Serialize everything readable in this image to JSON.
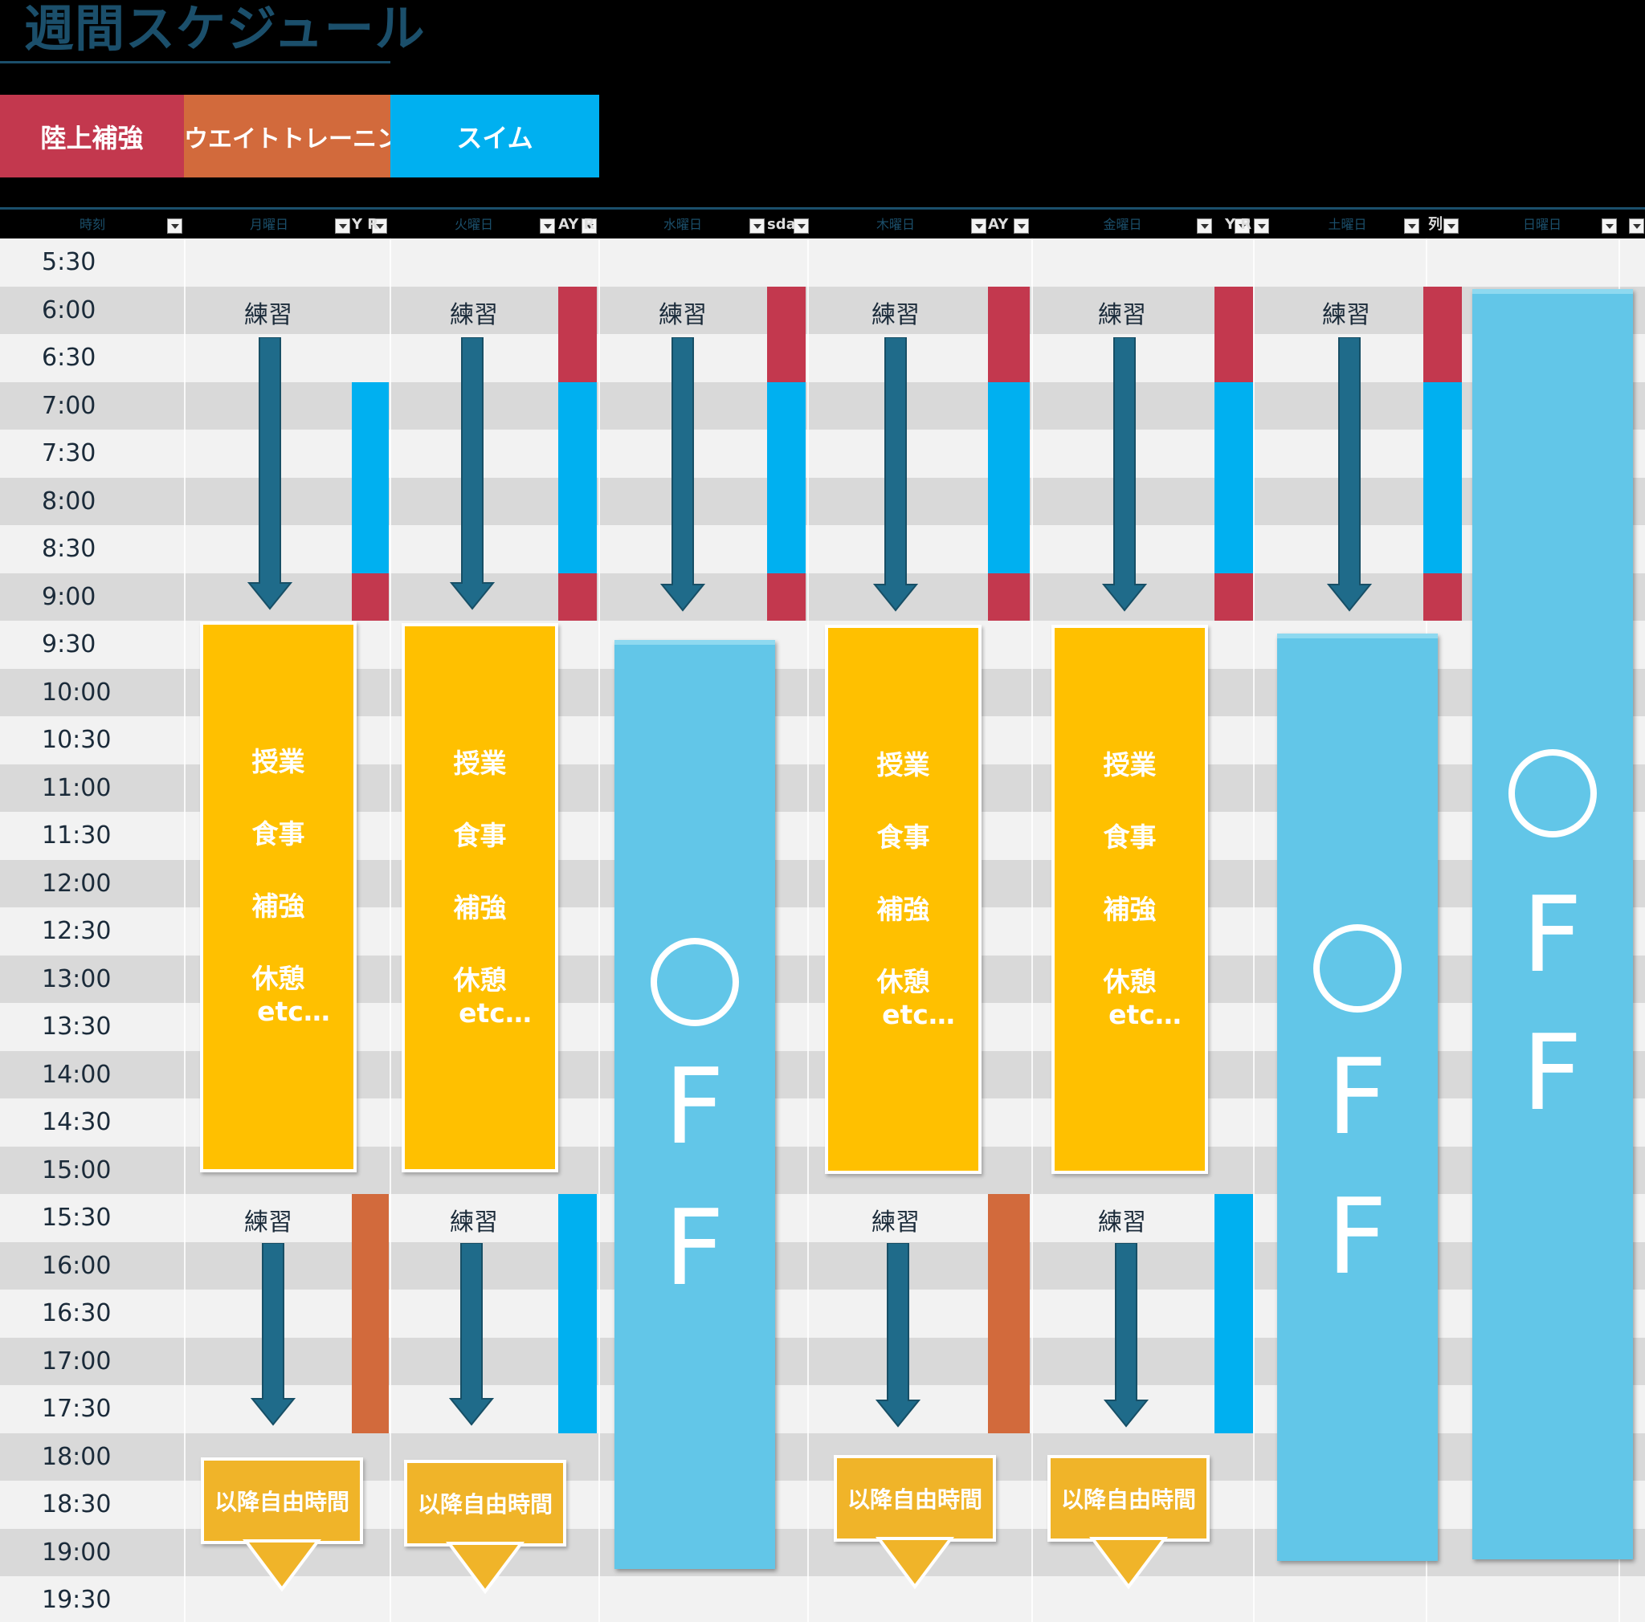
{
  "title": "週間スケジュール",
  "legend": [
    {
      "label": "陸上補強",
      "color": "#c3384e"
    },
    {
      "label": "ウエイトトレーニング",
      "color": "#d26a3c"
    },
    {
      "label": "スイム",
      "color": "#00b0f0"
    }
  ],
  "columns": {
    "time": "時刻",
    "mon": "月曜日",
    "tue": "火曜日",
    "wed": "水曜日",
    "thu": "木曜日",
    "fri": "金曜日",
    "sat": "土曜日",
    "sun": "日曜日"
  },
  "header_fragments": [
    "Y R",
    "AY R",
    "sda",
    "AY",
    "Y R",
    "列"
  ],
  "times": [
    "5:30",
    "6:00",
    "6:30",
    "7:00",
    "7:30",
    "8:00",
    "8:30",
    "9:00",
    "9:30",
    "10:00",
    "10:30",
    "11:00",
    "11:30",
    "12:00",
    "12:30",
    "13:00",
    "13:30",
    "14:00",
    "14:30",
    "15:00",
    "15:30",
    "16:00",
    "16:30",
    "17:00",
    "17:30",
    "18:00",
    "18:30",
    "19:00",
    "19:30"
  ],
  "practice_label": "練習",
  "class_block": {
    "lines": [
      "授業",
      "食事",
      "補強",
      "休憩"
    ],
    "etc": "etc…"
  },
  "free_time_label": "以降自由時間",
  "off": {
    "circle": "○",
    "letters": [
      "F",
      "F"
    ]
  },
  "colors": {
    "row_light": "#f2f2f2",
    "row_dark": "#d9d9d9",
    "arrow": "#1f6b8a",
    "land": "#c3384e",
    "weight": "#d26a3c",
    "swim": "#00b0f0",
    "class": "#ffc000",
    "off": "#62c6e8"
  }
}
